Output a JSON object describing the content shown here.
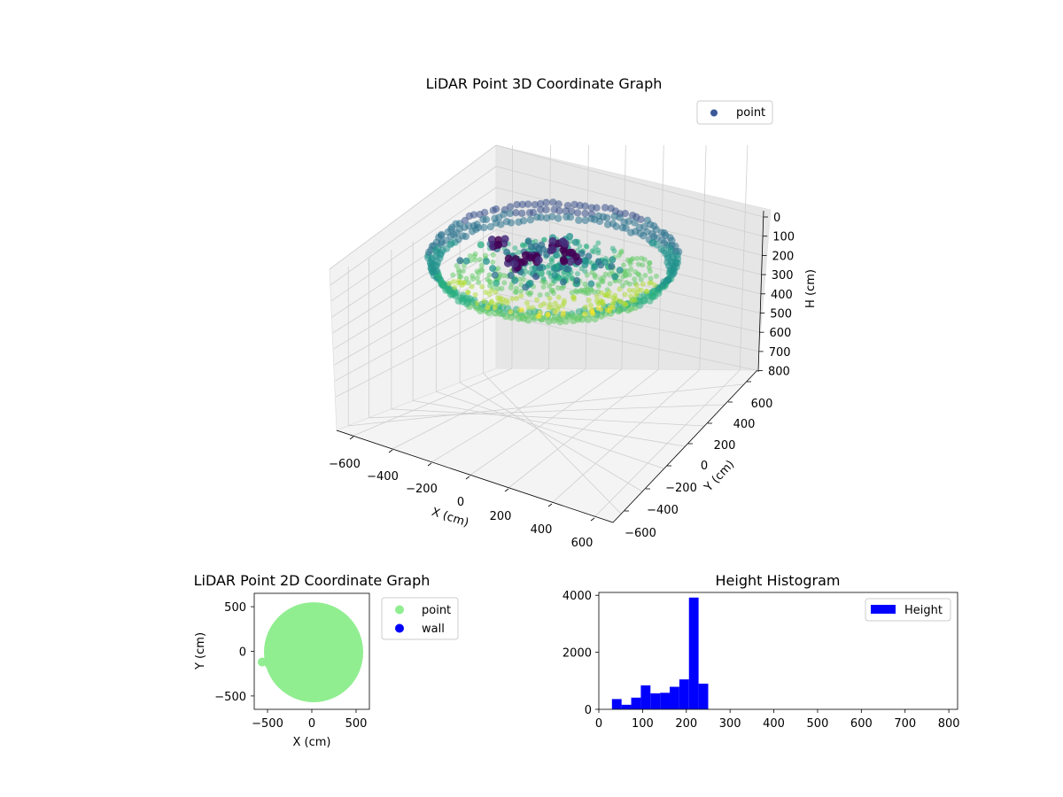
{
  "chart_data": [
    {
      "type": "scatter",
      "projection": "3d",
      "title": "LiDAR Point 3D Coordinate Graph",
      "xlabel": "X (cm)",
      "ylabel": "Y (cm)",
      "zlabel": "H (cm)",
      "xticks": [
        "−600",
        "−400",
        "−200",
        "0",
        "200",
        "400",
        "600"
      ],
      "yticks": [
        "−600",
        "−400",
        "−200",
        "0",
        "200",
        "400",
        "600"
      ],
      "zticks": [
        "0",
        "100",
        "200",
        "300",
        "400",
        "500",
        "600",
        "700",
        "800"
      ],
      "xlim": [
        -600,
        600
      ],
      "ylim": [
        -600,
        600
      ],
      "zlim": [
        0,
        800
      ],
      "z_inverted": true,
      "grid": true,
      "colormap": "viridis",
      "legend": {
        "position": "top-right",
        "entries": [
          {
            "name": "point",
            "color": "#3b5998"
          }
        ]
      },
      "description_of_data": "ring of points, radius ~580 cm, height ~100-250 cm, colored by height"
    },
    {
      "type": "scatter",
      "title": "LiDAR Point 2D Coordinate Graph",
      "xlabel": "X (cm)",
      "ylabel": "Y (cm)",
      "xticks": [
        "−500",
        "0",
        "500"
      ],
      "yticks": [
        "500",
        "0",
        "−500"
      ],
      "xlim": [
        -650,
        650
      ],
      "ylim": [
        -650,
        650
      ],
      "series": [
        {
          "name": "point",
          "color": "#90ee90",
          "shape": "filled disc",
          "center": [
            20,
            -10
          ],
          "radius": 560
        },
        {
          "name": "wall",
          "color": "#0000ff",
          "points": []
        }
      ],
      "legend": {
        "position": "outside-right"
      }
    },
    {
      "type": "bar",
      "title": "Height Histogram",
      "xlabel": "",
      "ylabel": "",
      "xticks": [
        "0",
        "100",
        "200",
        "300",
        "400",
        "500",
        "600",
        "700",
        "800"
      ],
      "yticks": [
        "0",
        "2000",
        "4000"
      ],
      "xlim": [
        0,
        820
      ],
      "ylim": [
        0,
        4100
      ],
      "bin_width": 22,
      "bins": [
        {
          "x0": 30,
          "x1": 52,
          "count": 360
        },
        {
          "x0": 52,
          "x1": 74,
          "count": 160
        },
        {
          "x0": 74,
          "x1": 96,
          "count": 410
        },
        {
          "x0": 96,
          "x1": 118,
          "count": 840
        },
        {
          "x0": 118,
          "x1": 140,
          "count": 560
        },
        {
          "x0": 140,
          "x1": 162,
          "count": 580
        },
        {
          "x0": 162,
          "x1": 184,
          "count": 790
        },
        {
          "x0": 184,
          "x1": 206,
          "count": 1050
        },
        {
          "x0": 206,
          "x1": 228,
          "count": 3920
        },
        {
          "x0": 228,
          "x1": 250,
          "count": 900
        }
      ],
      "color": "#0000ff",
      "legend": {
        "position": "top-right",
        "entries": [
          {
            "name": "Height",
            "color": "#0000ff"
          }
        ]
      }
    }
  ]
}
